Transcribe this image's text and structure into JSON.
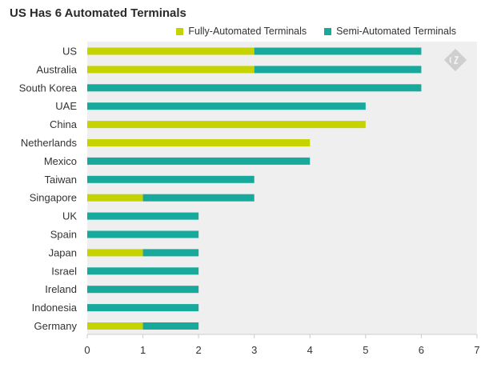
{
  "chart_data": {
    "type": "bar",
    "orientation": "horizontal",
    "stacked": true,
    "title": "US Has 6 Automated Terminals",
    "categories": [
      "US",
      "Australia",
      "South Korea",
      "UAE",
      "China",
      "Netherlands",
      "Mexico",
      "Taiwan",
      "Singapore",
      "UK",
      "Spain",
      "Japan",
      "Israel",
      "Ireland",
      "Indonesia",
      "Germany"
    ],
    "series": [
      {
        "name": "Fully-Automated Terminals",
        "color": "#c5d300",
        "values": [
          3,
          3,
          0,
          0,
          5,
          4,
          0,
          0,
          1,
          0,
          0,
          1,
          0,
          0,
          0,
          1
        ]
      },
      {
        "name": "Semi-Automated Terminals",
        "color": "#16a99c",
        "values": [
          3,
          3,
          6,
          5,
          0,
          0,
          4,
          3,
          2,
          2,
          2,
          1,
          2,
          2,
          2,
          1
        ]
      }
    ],
    "xlim": [
      0,
      7
    ],
    "xticks": [
      0,
      1,
      2,
      3,
      4,
      5,
      6,
      7
    ],
    "xlabel": "",
    "ylabel": "",
    "grid": false,
    "legend_position": "top-right",
    "plot_background": "#efefef"
  },
  "watermark_icon": "diamond-logo-icon"
}
